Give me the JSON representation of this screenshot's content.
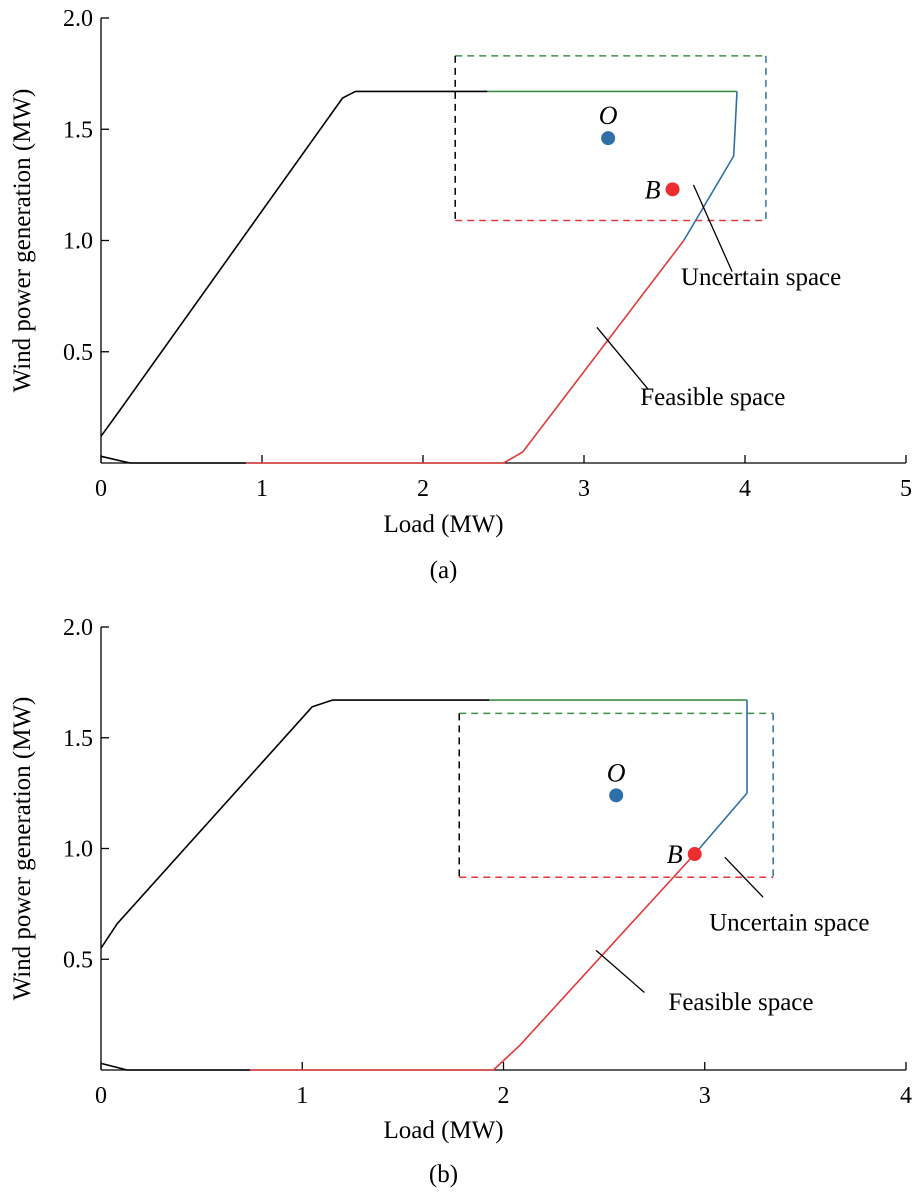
{
  "colors": {
    "black": "#000000",
    "red": "#e03a3a",
    "blue": "#2f6fa8",
    "green": "#3f8f4a",
    "point_blue": "#2f6fa8",
    "point_red": "#ee2e2e"
  },
  "chart_data": [
    {
      "type": "line",
      "caption": "(a)",
      "xlabel": "Load (MW)",
      "ylabel": "Wind power generation (MW)",
      "xlim": [
        0,
        5
      ],
      "ylim": [
        0,
        2.0
      ],
      "xticks": [
        "0",
        "1",
        "2",
        "3",
        "4",
        "5"
      ],
      "yticks": [
        "0.5",
        "1.0",
        "1.5",
        "2.0"
      ],
      "grid": false,
      "series": [
        {
          "color": "black",
          "points": [
            [
              0,
              0.12
            ],
            [
              0.12,
              0.24
            ],
            [
              1.5,
              1.64
            ],
            [
              1.58,
              1.67
            ],
            [
              2.4,
              1.67
            ]
          ]
        },
        {
          "color": "green",
          "points": [
            [
              2.4,
              1.67
            ],
            [
              3.95,
              1.67
            ]
          ]
        },
        {
          "color": "blue",
          "points": [
            [
              3.95,
              1.67
            ],
            [
              3.93,
              1.38
            ],
            [
              3.62,
              1.0
            ]
          ]
        },
        {
          "color": "red",
          "points": [
            [
              3.62,
              1.0
            ],
            [
              2.62,
              0.05
            ],
            [
              2.5,
              0.0
            ],
            [
              0.9,
              0.0
            ]
          ]
        },
        {
          "color": "black",
          "points": [
            [
              0.9,
              0.0
            ],
            [
              0.18,
              0.0
            ],
            [
              0,
              0.03
            ]
          ]
        }
      ],
      "uncertain_box": {
        "x0": 2.2,
        "x1": 4.13,
        "y0": 1.09,
        "y1": 1.83
      },
      "points": [
        {
          "label": "O",
          "x": 3.15,
          "y": 1.46,
          "color": "point_blue"
        },
        {
          "label": "B",
          "x": 3.55,
          "y": 1.23,
          "color": "point_red"
        }
      ],
      "annotations": [
        {
          "text": "Uncertain space",
          "text_pos": [
            4.1,
            0.8
          ],
          "line": [
            [
              3.68,
              1.25
            ],
            [
              3.92,
              0.86
            ]
          ]
        },
        {
          "text": "Feasible space",
          "text_pos": [
            3.8,
            0.26
          ],
          "line": [
            [
              3.08,
              0.61
            ],
            [
              3.4,
              0.33
            ]
          ]
        }
      ]
    },
    {
      "type": "line",
      "caption": "(b)",
      "xlabel": "Load (MW)",
      "ylabel": "Wind power generation (MW)",
      "xlim": [
        0,
        4
      ],
      "ylim": [
        0,
        2.0
      ],
      "xticks": [
        "0",
        "1",
        "2",
        "3",
        "4"
      ],
      "yticks": [
        "0.5",
        "1.0",
        "1.5",
        "2.0"
      ],
      "grid": false,
      "series": [
        {
          "color": "black",
          "points": [
            [
              0,
              0.55
            ],
            [
              0.08,
              0.66
            ],
            [
              1.05,
              1.64
            ],
            [
              1.15,
              1.67
            ],
            [
              1.93,
              1.67
            ]
          ]
        },
        {
          "color": "green",
          "points": [
            [
              1.93,
              1.67
            ],
            [
              3.21,
              1.67
            ]
          ]
        },
        {
          "color": "blue",
          "points": [
            [
              3.21,
              1.67
            ],
            [
              3.21,
              1.25
            ],
            [
              2.95,
              0.975
            ]
          ]
        },
        {
          "color": "red",
          "points": [
            [
              2.95,
              0.975
            ],
            [
              2.08,
              0.11
            ],
            [
              1.95,
              0.0
            ],
            [
              0.74,
              0.0
            ]
          ]
        },
        {
          "color": "black",
          "points": [
            [
              0.74,
              0.0
            ],
            [
              0.13,
              0.0
            ],
            [
              0,
              0.03
            ]
          ]
        }
      ],
      "uncertain_box": {
        "x0": 1.78,
        "x1": 3.34,
        "y0": 0.87,
        "y1": 1.61
      },
      "points": [
        {
          "label": "O",
          "x": 2.56,
          "y": 1.24,
          "color": "point_blue"
        },
        {
          "label": "B",
          "x": 2.95,
          "y": 0.975,
          "color": "point_red"
        }
      ],
      "annotations": [
        {
          "text": "Uncertain space",
          "text_pos": [
            3.42,
            0.63
          ],
          "line": [
            [
              3.1,
              0.96
            ],
            [
              3.29,
              0.78
            ]
          ]
        },
        {
          "text": "Feasible space",
          "text_pos": [
            3.18,
            0.27
          ],
          "line": [
            [
              2.46,
              0.54
            ],
            [
              2.7,
              0.35
            ]
          ]
        }
      ]
    }
  ]
}
